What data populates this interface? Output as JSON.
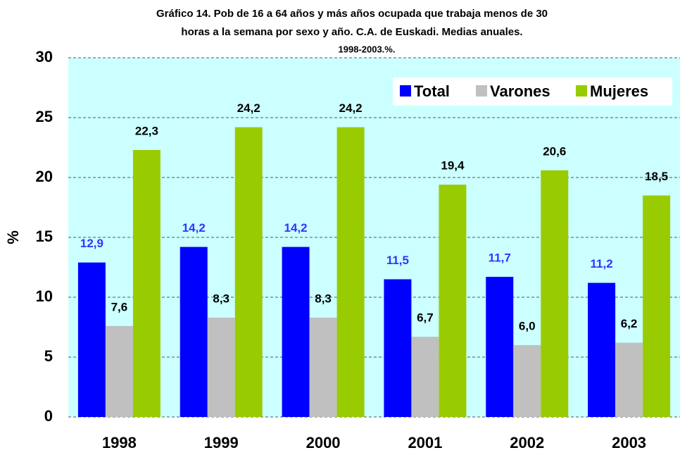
{
  "chart_data": {
    "type": "bar",
    "title": [
      "Gráfico 14. Pob de 16 a 64 años  y más años ocupada que trabaja menos de 30",
      "horas a la semana por sexo y año. C.A. de Euskadi. Medias anuales.",
      "1998-2003.%."
    ],
    "y_label": "%",
    "categories": [
      "1998",
      "1999",
      "2000",
      "2001",
      "2002",
      "2003"
    ],
    "series": [
      {
        "name": "Total",
        "color": "#0000ff",
        "label_color": "#3333ff",
        "values": [
          12.9,
          14.2,
          14.2,
          11.5,
          11.7,
          11.2
        ],
        "value_labels": [
          "12,9",
          "14,2",
          "14,2",
          "11,5",
          "11,7",
          "11,2"
        ]
      },
      {
        "name": "Varones",
        "color": "#c0c0c0",
        "label_color": "#000000",
        "values": [
          7.6,
          8.3,
          8.3,
          6.7,
          6.0,
          6.2
        ],
        "value_labels": [
          "7,6",
          "8,3",
          "8,3",
          "6,7",
          "6,0",
          "6,2"
        ]
      },
      {
        "name": "Mujeres",
        "color": "#99cc00",
        "label_color": "#000000",
        "values": [
          22.3,
          24.2,
          24.2,
          19.4,
          20.6,
          18.5
        ],
        "value_labels": [
          "22,3",
          "24,2",
          "24,2",
          "19,4",
          "20,6",
          "18,5"
        ]
      }
    ],
    "ylim": [
      0,
      30
    ],
    "yticks": [
      0,
      5,
      10,
      15,
      20,
      25,
      30
    ],
    "grid": true,
    "legend": "top-right"
  }
}
